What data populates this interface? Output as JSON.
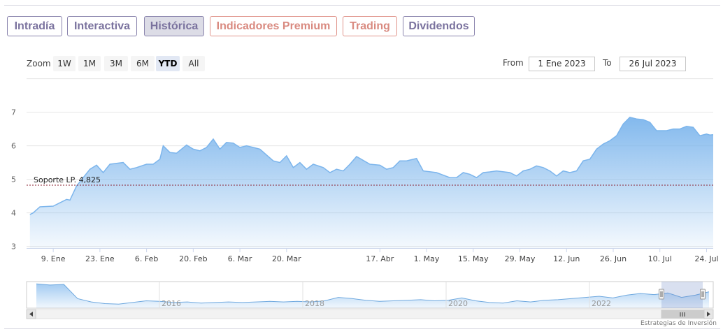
{
  "tabs": [
    {
      "label": "Intradía",
      "style": "purple",
      "active": false
    },
    {
      "label": "Interactiva",
      "style": "purple",
      "active": false
    },
    {
      "label": "Histórica",
      "style": "purple",
      "active": true
    },
    {
      "label": "Indicadores Premium",
      "style": "red",
      "active": false
    },
    {
      "label": "Trading",
      "style": "red",
      "active": false
    },
    {
      "label": "Dividendos",
      "style": "purple",
      "active": false
    }
  ],
  "range_selector": {
    "zoom_label": "Zoom",
    "buttons": [
      "1W",
      "1M",
      "3M",
      "6M",
      "YTD",
      "All"
    ],
    "selected": "YTD",
    "from_label": "From",
    "from_value": "1 Ene 2023",
    "to_label": "To",
    "to_value": "26 Jul 2023"
  },
  "chart_data": {
    "type": "area",
    "title": "",
    "xlabel": "",
    "ylabel": "",
    "ylim": [
      3,
      7
    ],
    "yticks": [
      3,
      4,
      5,
      6,
      7
    ],
    "xlim": [
      "2023-01-01",
      "2023-07-26"
    ],
    "xticks": [
      {
        "date": "2023-01-09",
        "label": "9. Ene"
      },
      {
        "date": "2023-01-23",
        "label": "23. Ene"
      },
      {
        "date": "2023-02-06",
        "label": "6. Feb"
      },
      {
        "date": "2023-02-20",
        "label": "20. Feb"
      },
      {
        "date": "2023-03-06",
        "label": "6. Mar"
      },
      {
        "date": "2023-03-20",
        "label": "20. Mar"
      },
      {
        "date": "2023-04-17",
        "label": "17. Abr"
      },
      {
        "date": "2023-05-01",
        "label": "1. May"
      },
      {
        "date": "2023-05-15",
        "label": "15. May"
      },
      {
        "date": "2023-05-29",
        "label": "29. May"
      },
      {
        "date": "2023-06-12",
        "label": "12. Jun"
      },
      {
        "date": "2023-06-26",
        "label": "26. Jun"
      },
      {
        "date": "2023-07-10",
        "label": "10. Jul"
      },
      {
        "date": "2023-07-24",
        "label": "24. Jul"
      }
    ],
    "grid": true,
    "color": "#7cb5ec",
    "series": [
      {
        "points": [
          [
            "2023-01-02",
            3.95
          ],
          [
            "2023-01-03",
            4.0
          ],
          [
            "2023-01-05",
            4.18
          ],
          [
            "2023-01-09",
            4.2
          ],
          [
            "2023-01-11",
            4.3
          ],
          [
            "2023-01-13",
            4.4
          ],
          [
            "2023-01-14",
            4.38
          ],
          [
            "2023-01-16",
            4.8
          ],
          [
            "2023-01-18",
            5.05
          ],
          [
            "2023-01-20",
            5.3
          ],
          [
            "2023-01-22",
            5.42
          ],
          [
            "2023-01-24",
            5.2
          ],
          [
            "2023-01-26",
            5.45
          ],
          [
            "2023-01-30",
            5.5
          ],
          [
            "2023-02-01",
            5.3
          ],
          [
            "2023-02-03",
            5.35
          ],
          [
            "2023-02-06",
            5.45
          ],
          [
            "2023-02-08",
            5.45
          ],
          [
            "2023-02-10",
            5.6
          ],
          [
            "2023-02-11",
            6.0
          ],
          [
            "2023-02-13",
            5.8
          ],
          [
            "2023-02-15",
            5.78
          ],
          [
            "2023-02-18",
            6.02
          ],
          [
            "2023-02-20",
            5.9
          ],
          [
            "2023-02-22",
            5.85
          ],
          [
            "2023-02-24",
            5.95
          ],
          [
            "2023-02-26",
            6.2
          ],
          [
            "2023-02-28",
            5.9
          ],
          [
            "2023-03-02",
            6.1
          ],
          [
            "2023-03-04",
            6.08
          ],
          [
            "2023-03-06",
            5.95
          ],
          [
            "2023-03-08",
            6.0
          ],
          [
            "2023-03-10",
            5.95
          ],
          [
            "2023-03-12",
            5.9
          ],
          [
            "2023-03-16",
            5.55
          ],
          [
            "2023-03-18",
            5.5
          ],
          [
            "2023-03-20",
            5.7
          ],
          [
            "2023-03-22",
            5.35
          ],
          [
            "2023-03-24",
            5.5
          ],
          [
            "2023-03-26",
            5.3
          ],
          [
            "2023-03-28",
            5.45
          ],
          [
            "2023-03-31",
            5.35
          ],
          [
            "2023-04-02",
            5.2
          ],
          [
            "2023-04-04",
            5.3
          ],
          [
            "2023-04-06",
            5.25
          ],
          [
            "2023-04-08",
            5.45
          ],
          [
            "2023-04-10",
            5.68
          ],
          [
            "2023-04-14",
            5.45
          ],
          [
            "2023-04-17",
            5.42
          ],
          [
            "2023-04-19",
            5.3
          ],
          [
            "2023-04-21",
            5.35
          ],
          [
            "2023-04-23",
            5.55
          ],
          [
            "2023-04-25",
            5.55
          ],
          [
            "2023-04-28",
            5.62
          ],
          [
            "2023-04-30",
            5.25
          ],
          [
            "2023-05-04",
            5.2
          ],
          [
            "2023-05-08",
            5.05
          ],
          [
            "2023-05-10",
            5.05
          ],
          [
            "2023-05-12",
            5.2
          ],
          [
            "2023-05-14",
            5.15
          ],
          [
            "2023-05-16",
            5.05
          ],
          [
            "2023-05-18",
            5.2
          ],
          [
            "2023-05-20",
            5.22
          ],
          [
            "2023-05-22",
            5.25
          ],
          [
            "2023-05-26",
            5.2
          ],
          [
            "2023-05-28",
            5.1
          ],
          [
            "2023-05-30",
            5.25
          ],
          [
            "2023-06-01",
            5.3
          ],
          [
            "2023-06-03",
            5.4
          ],
          [
            "2023-06-05",
            5.35
          ],
          [
            "2023-06-07",
            5.25
          ],
          [
            "2023-06-09",
            5.1
          ],
          [
            "2023-06-11",
            5.25
          ],
          [
            "2023-06-13",
            5.2
          ],
          [
            "2023-06-15",
            5.25
          ],
          [
            "2023-06-17",
            5.55
          ],
          [
            "2023-06-19",
            5.6
          ],
          [
            "2023-06-21",
            5.9
          ],
          [
            "2023-06-23",
            6.05
          ],
          [
            "2023-06-25",
            6.15
          ],
          [
            "2023-06-27",
            6.3
          ],
          [
            "2023-06-29",
            6.65
          ],
          [
            "2023-07-01",
            6.85
          ],
          [
            "2023-07-03",
            6.8
          ],
          [
            "2023-07-05",
            6.78
          ],
          [
            "2023-07-07",
            6.7
          ],
          [
            "2023-07-09",
            6.45
          ],
          [
            "2023-07-12",
            6.45
          ],
          [
            "2023-07-14",
            6.5
          ],
          [
            "2023-07-16",
            6.5
          ],
          [
            "2023-07-18",
            6.58
          ],
          [
            "2023-07-20",
            6.55
          ],
          [
            "2023-07-22",
            6.3
          ],
          [
            "2023-07-24",
            6.35
          ],
          [
            "2023-07-25",
            6.32
          ],
          [
            "2023-07-26",
            6.33
          ]
        ]
      }
    ],
    "annotations": [
      {
        "label": "Soporte LP. 4,825",
        "y": 4.825,
        "style": "dashed",
        "color": "#8b2232"
      }
    ],
    "navigator": {
      "year_labels": [
        "2016",
        "2018",
        "2020",
        "2022"
      ],
      "values": [
        6.8,
        6.6,
        6.7,
        4.2,
        3.6,
        3.3,
        3.2,
        3.5,
        3.8,
        3.7,
        3.5,
        3.6,
        3.4,
        3.5,
        3.6,
        3.5,
        3.6,
        3.7,
        3.6,
        3.7,
        3.6,
        3.8,
        4.4,
        4.2,
        3.9,
        3.7,
        3.8,
        3.9,
        4.0,
        3.8,
        3.9,
        4.3,
        3.8,
        3.5,
        3.4,
        3.8,
        3.6,
        3.9,
        4.0,
        4.2,
        4.4,
        4.6,
        4.3,
        4.8,
        5.1,
        4.9,
        5.2,
        4.4,
        4.8,
        5.4
      ]
    }
  },
  "credit": "Estrategias de Inversión"
}
